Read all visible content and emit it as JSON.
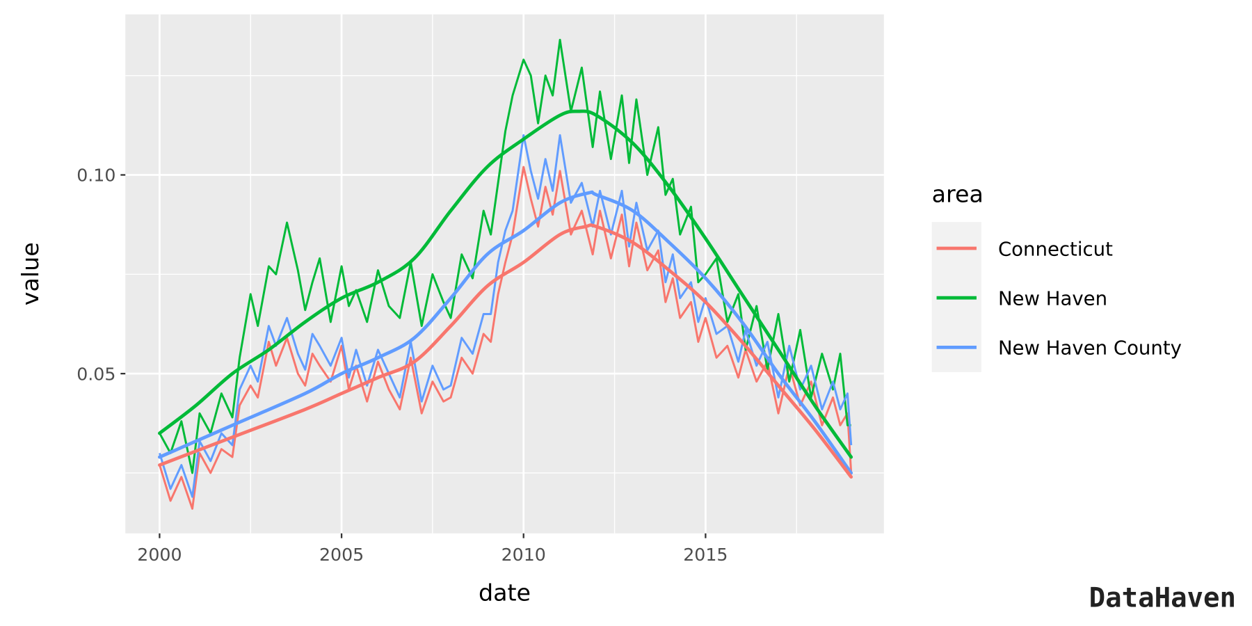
{
  "chart_data": {
    "type": "line",
    "xlabel": "date",
    "ylabel": "value",
    "xlim": [
      1999.06,
      2019.9
    ],
    "ylim": [
      0.0098,
      0.1404
    ],
    "x_ticks": [
      2000,
      2005,
      2010,
      2015
    ],
    "x_tick_labels": [
      "2000",
      "2005",
      "2010",
      "2015"
    ],
    "y_ticks": [
      0.05,
      0.1
    ],
    "y_tick_labels": [
      "0.05",
      "0.10"
    ],
    "grid": true,
    "legend": {
      "title": "area",
      "placement": "right",
      "entries": [
        "Connecticut",
        "New Haven",
        "New Haven County"
      ]
    },
    "colors": {
      "Connecticut": "#F8766D",
      "New Haven": "#00BA38",
      "New Haven County": "#619CFF"
    },
    "x": [
      2000,
      2000.3,
      2000.6,
      2000.9,
      2001.1,
      2001.4,
      2001.7,
      2002.0,
      2002.2,
      2002.5,
      2002.7,
      2003.0,
      2003.2,
      2003.5,
      2003.8,
      2004.0,
      2004.2,
      2004.4,
      2004.7,
      2005.0,
      2005.2,
      2005.4,
      2005.7,
      2006.0,
      2006.3,
      2006.6,
      2006.9,
      2007.2,
      2007.5,
      2007.8,
      2008.0,
      2008.3,
      2008.6,
      2008.9,
      2009.1,
      2009.3,
      2009.5,
      2009.7,
      2010.0,
      2010.2,
      2010.4,
      2010.6,
      2010.8,
      2011.0,
      2011.3,
      2011.6,
      2011.9,
      2012.1,
      2012.4,
      2012.7,
      2012.9,
      2013.1,
      2013.4,
      2013.7,
      2013.9,
      2014.1,
      2014.3,
      2014.6,
      2014.8,
      2015.0,
      2015.3,
      2015.6,
      2015.9,
      2016.1,
      2016.4,
      2016.7,
      2017.0,
      2017.3,
      2017.6,
      2017.9,
      2018.2,
      2018.5,
      2018.7,
      2018.9,
      2019.0
    ],
    "series": [
      {
        "name": "Connecticut",
        "values": [
          0.027,
          0.018,
          0.024,
          0.016,
          0.03,
          0.025,
          0.031,
          0.029,
          0.042,
          0.047,
          0.044,
          0.058,
          0.052,
          0.059,
          0.05,
          0.047,
          0.055,
          0.052,
          0.048,
          0.057,
          0.046,
          0.052,
          0.043,
          0.053,
          0.046,
          0.041,
          0.054,
          0.04,
          0.048,
          0.043,
          0.044,
          0.054,
          0.05,
          0.06,
          0.058,
          0.07,
          0.078,
          0.085,
          0.102,
          0.094,
          0.087,
          0.097,
          0.09,
          0.101,
          0.085,
          0.091,
          0.08,
          0.091,
          0.079,
          0.09,
          0.077,
          0.088,
          0.076,
          0.081,
          0.068,
          0.074,
          0.064,
          0.068,
          0.058,
          0.064,
          0.054,
          0.057,
          0.049,
          0.056,
          0.048,
          0.053,
          0.04,
          0.052,
          0.042,
          0.048,
          0.037,
          0.044,
          0.037,
          0.04,
          0.025
        ]
      },
      {
        "name": "New Haven",
        "values": [
          0.035,
          0.03,
          0.038,
          0.025,
          0.04,
          0.035,
          0.045,
          0.039,
          0.054,
          0.07,
          0.062,
          0.077,
          0.075,
          0.088,
          0.076,
          0.066,
          0.073,
          0.079,
          0.063,
          0.077,
          0.067,
          0.071,
          0.063,
          0.076,
          0.067,
          0.064,
          0.078,
          0.062,
          0.075,
          0.068,
          0.064,
          0.08,
          0.074,
          0.091,
          0.085,
          0.098,
          0.111,
          0.12,
          0.129,
          0.125,
          0.113,
          0.125,
          0.12,
          0.134,
          0.116,
          0.127,
          0.107,
          0.121,
          0.104,
          0.12,
          0.103,
          0.119,
          0.1,
          0.112,
          0.095,
          0.099,
          0.085,
          0.092,
          0.073,
          0.075,
          0.079,
          0.063,
          0.07,
          0.056,
          0.067,
          0.051,
          0.065,
          0.048,
          0.061,
          0.044,
          0.055,
          0.046,
          0.055,
          0.037,
          0.037
        ]
      },
      {
        "name": "New Haven County",
        "values": [
          0.03,
          0.021,
          0.027,
          0.019,
          0.033,
          0.028,
          0.035,
          0.032,
          0.046,
          0.052,
          0.048,
          0.062,
          0.057,
          0.064,
          0.055,
          0.051,
          0.06,
          0.057,
          0.052,
          0.059,
          0.049,
          0.056,
          0.047,
          0.056,
          0.05,
          0.044,
          0.058,
          0.043,
          0.052,
          0.046,
          0.047,
          0.059,
          0.055,
          0.065,
          0.065,
          0.078,
          0.086,
          0.091,
          0.11,
          0.101,
          0.094,
          0.104,
          0.096,
          0.11,
          0.093,
          0.098,
          0.087,
          0.096,
          0.085,
          0.096,
          0.082,
          0.093,
          0.081,
          0.086,
          0.073,
          0.08,
          0.069,
          0.073,
          0.063,
          0.069,
          0.06,
          0.062,
          0.053,
          0.061,
          0.052,
          0.058,
          0.044,
          0.057,
          0.046,
          0.052,
          0.041,
          0.048,
          0.041,
          0.045,
          0.032
        ]
      }
    ],
    "smooth": {
      "Connecticut": {
        "x": [
          2000,
          2002,
          2004,
          2005,
          2006,
          2007,
          2008,
          2009,
          2010,
          2011,
          2011.7,
          2012,
          2013,
          2014,
          2015,
          2016,
          2017,
          2018,
          2019
        ],
        "values": [
          0.027,
          0.034,
          0.041,
          0.045,
          0.049,
          0.053,
          0.062,
          0.072,
          0.078,
          0.085,
          0.087,
          0.087,
          0.083,
          0.076,
          0.068,
          0.058,
          0.047,
          0.036,
          0.024
        ]
      },
      "New Haven": {
        "x": [
          2000,
          2001,
          2002,
          2003,
          2004,
          2005,
          2006,
          2007,
          2008,
          2009,
          2010,
          2011,
          2011.5,
          2012,
          2013,
          2014,
          2015,
          2016,
          2017,
          2018,
          2019
        ],
        "values": [
          0.035,
          0.042,
          0.05,
          0.056,
          0.063,
          0.069,
          0.073,
          0.079,
          0.091,
          0.102,
          0.109,
          0.115,
          0.116,
          0.115,
          0.108,
          0.097,
          0.084,
          0.07,
          0.056,
          0.042,
          0.029
        ]
      },
      "New Haven County": {
        "x": [
          2000,
          2002,
          2004,
          2005,
          2006,
          2007,
          2008,
          2009,
          2010,
          2011,
          2011.8,
          2012,
          2013,
          2014,
          2015,
          2016,
          2017,
          2018,
          2019
        ],
        "values": [
          0.029,
          0.037,
          0.045,
          0.05,
          0.054,
          0.059,
          0.069,
          0.08,
          0.086,
          0.093,
          0.0955,
          0.095,
          0.091,
          0.083,
          0.074,
          0.063,
          0.05,
          0.038,
          0.025
        ]
      }
    }
  },
  "watermark": "DataHaven"
}
